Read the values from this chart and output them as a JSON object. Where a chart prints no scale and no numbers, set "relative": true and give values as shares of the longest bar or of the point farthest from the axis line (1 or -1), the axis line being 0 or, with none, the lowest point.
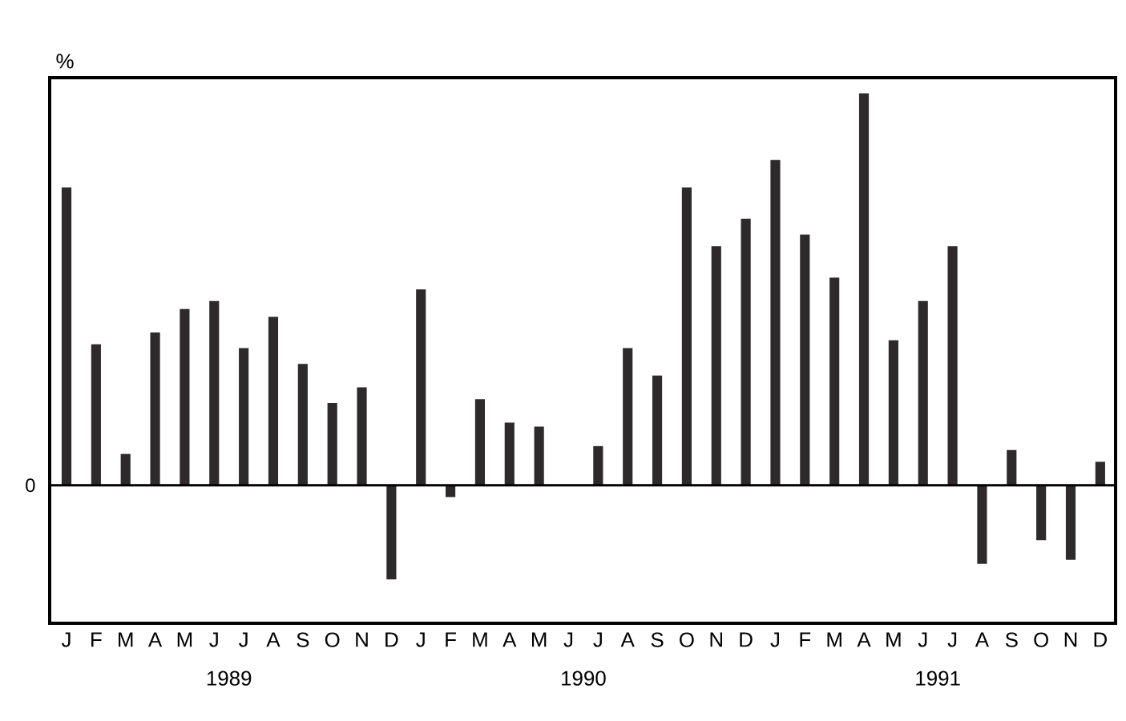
{
  "chart_data": {
    "type": "bar",
    "relative": true,
    "ylabel": "%",
    "color": "#2e2a2c",
    "categories": [
      "J",
      "F",
      "M",
      "A",
      "M",
      "J",
      "J",
      "A",
      "S",
      "O",
      "N",
      "D",
      "J",
      "F",
      "M",
      "A",
      "M",
      "J",
      "J",
      "A",
      "S",
      "O",
      "N",
      "D",
      "J",
      "F",
      "M",
      "A",
      "M",
      "J",
      "J",
      "A",
      "S",
      "O",
      "N",
      "D"
    ],
    "values": [
      0.76,
      0.36,
      0.08,
      0.39,
      0.45,
      0.47,
      0.35,
      0.43,
      0.31,
      0.21,
      0.25,
      -0.24,
      0.5,
      -0.03,
      0.22,
      0.16,
      0.15,
      0,
      0.1,
      0.35,
      0.28,
      0.76,
      0.61,
      0.68,
      0.83,
      0.64,
      0.53,
      1.0,
      0.37,
      0.47,
      0.61,
      -0.2,
      0.09,
      -0.14,
      -0.19,
      0.06
    ],
    "annotations": [
      "0",
      "1989",
      "1990",
      "1991"
    ]
  }
}
